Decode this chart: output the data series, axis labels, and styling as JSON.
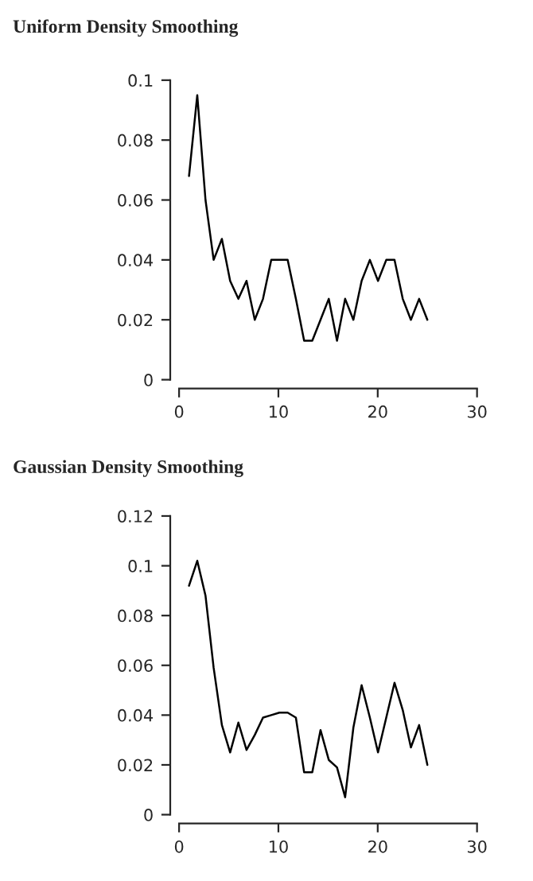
{
  "chart_data": [
    {
      "type": "line",
      "title": "Uniform Density Smoothing",
      "x": [
        1,
        1.83,
        2.66,
        3.48,
        4.31,
        5.14,
        5.97,
        6.79,
        7.62,
        8.45,
        9.28,
        10.1,
        10.93,
        11.76,
        12.59,
        13.41,
        14.24,
        15.07,
        15.9,
        16.72,
        17.55,
        18.38,
        19.21,
        20.03,
        20.86,
        21.69,
        22.52,
        23.34,
        24.17,
        25
      ],
      "series": [
        {
          "color": "#000000",
          "values": [
            0.068,
            0.095,
            0.06,
            0.04,
            0.047,
            0.033,
            0.027,
            0.033,
            0.02,
            0.027,
            0.04,
            0.04,
            0.04,
            0.027,
            0.013,
            0.013,
            0.02,
            0.027,
            0.013,
            0.027,
            0.02,
            0.033,
            0.04,
            0.033,
            0.04,
            0.04,
            0.027,
            0.02,
            0.027,
            0.02
          ]
        }
      ],
      "xlim": [
        0,
        30
      ],
      "xticks": [
        0,
        10,
        20,
        30
      ],
      "ylim": [
        0,
        0.1
      ],
      "yticks": [
        0,
        0.02,
        0.04,
        0.06,
        0.08,
        0.1
      ],
      "grid": false,
      "legend": false,
      "line_style": "solid",
      "marker": "none"
    },
    {
      "type": "line",
      "title": "Gaussian Density Smoothing",
      "x": [
        1,
        1.83,
        2.66,
        3.48,
        4.31,
        5.14,
        5.97,
        6.79,
        7.62,
        8.45,
        9.28,
        10.1,
        10.93,
        11.76,
        12.59,
        13.41,
        14.24,
        15.07,
        15.9,
        16.72,
        17.55,
        18.38,
        19.21,
        20.03,
        20.86,
        21.69,
        22.52,
        23.34,
        24.17,
        25
      ],
      "series": [
        {
          "color": "#000000",
          "values": [
            0.092,
            0.102,
            0.088,
            0.059,
            0.036,
            0.025,
            0.037,
            0.026,
            0.032,
            0.039,
            0.04,
            0.041,
            0.041,
            0.039,
            0.017,
            0.017,
            0.034,
            0.022,
            0.019,
            0.007,
            0.035,
            0.052,
            0.039,
            0.025,
            0.039,
            0.053,
            0.042,
            0.027,
            0.036,
            0.02
          ]
        }
      ],
      "xlim": [
        0,
        30
      ],
      "xticks": [
        0,
        10,
        20,
        30
      ],
      "ylim": [
        0,
        0.12
      ],
      "yticks": [
        0,
        0.02,
        0.04,
        0.06,
        0.08,
        0.1,
        0.12
      ],
      "grid": false,
      "legend": false,
      "line_style": "solid",
      "marker": "none"
    }
  ]
}
